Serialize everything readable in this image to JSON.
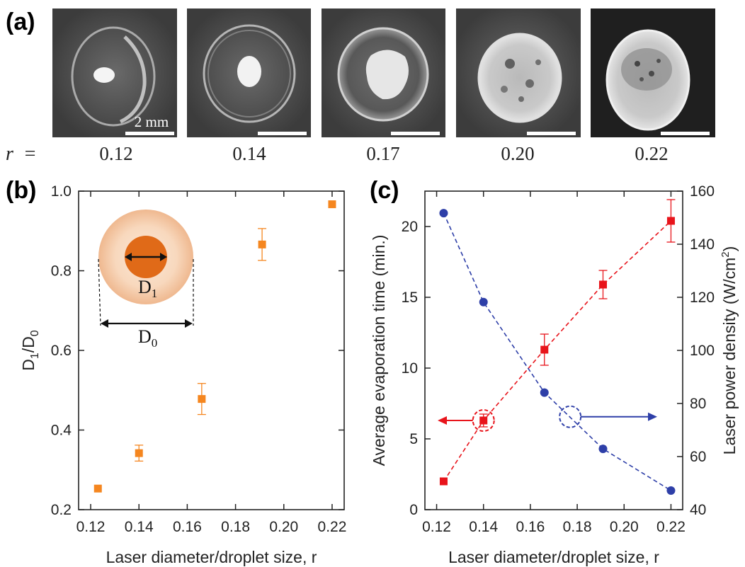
{
  "panels": {
    "a": {
      "label": "(a)"
    },
    "b": {
      "label": "(b)"
    },
    "c": {
      "label": "(c)"
    }
  },
  "photos": {
    "row_prefix": "r  =",
    "scale_bar_label": "2 mm",
    "items": [
      {
        "r_label": "0.12"
      },
      {
        "r_label": "0.14"
      },
      {
        "r_label": "0.17"
      },
      {
        "r_label": "0.20"
      },
      {
        "r_label": "0.22"
      }
    ]
  },
  "inset": {
    "d1_base": "D",
    "d1_sub": "1",
    "d0_base": "D",
    "d0_sub": "0",
    "colors": {
      "inner": "#e06a18",
      "outer_edge": "#f1c19d",
      "outer_center": "#fbe8d8"
    }
  },
  "chart_data": [
    {
      "id": "b",
      "type": "scatter",
      "title": "",
      "xlabel": "Laser diameter/droplet size, r",
      "ylabel": {
        "base": "D",
        "sub1": "1",
        "mid": "/D",
        "sub2": "0"
      },
      "xlim": [
        0.115,
        0.225
      ],
      "ylim": [
        0.2,
        1.0
      ],
      "xticks": [
        "0.12",
        "0.14",
        "0.16",
        "0.18",
        "0.20",
        "0.22"
      ],
      "yticks": [
        "0.2",
        "0.4",
        "0.6",
        "0.8",
        "1.0"
      ],
      "series": [
        {
          "color": "#f5861f",
          "marker": "square",
          "x": [
            0.123,
            0.14,
            0.166,
            0.191,
            0.22
          ],
          "y": [
            0.253,
            0.342,
            0.478,
            0.866,
            0.967
          ],
          "err": [
            0,
            0.02,
            0.039,
            0.04,
            0
          ]
        }
      ]
    },
    {
      "id": "c",
      "type": "line",
      "title": "",
      "xlabel": "Laser diameter/droplet size, r",
      "ylabel": "Average evaporation time (min.)",
      "y2label": {
        "base": "Laser power density (W/cm",
        "sup": "2",
        "end": ")"
      },
      "xlim": [
        0.115,
        0.225
      ],
      "ylim": [
        0,
        22.5
      ],
      "y2lim": [
        40,
        160
      ],
      "xticks": [
        "0.12",
        "0.14",
        "0.16",
        "0.18",
        "0.20",
        "0.22"
      ],
      "yticks": [
        "0",
        "5",
        "10",
        "15",
        "20"
      ],
      "y2ticks": [
        "40",
        "60",
        "80",
        "100",
        "120",
        "140",
        "160"
      ],
      "series": [
        {
          "axis": "left",
          "color": "#e8141b",
          "marker": "square",
          "line": "dashed",
          "x": [
            0.123,
            0.14,
            0.166,
            0.191,
            0.22
          ],
          "y": [
            2.0,
            6.3,
            11.3,
            15.9,
            20.4
          ],
          "err": [
            0,
            0.45,
            1.1,
            1.0,
            1.5
          ]
        },
        {
          "axis": "right",
          "color": "#2e3fa8",
          "marker": "circle",
          "line": "dashed",
          "x": [
            0.123,
            0.14,
            0.166,
            0.191,
            0.22
          ],
          "y": [
            151.7,
            118.2,
            84.1,
            62.9,
            47.2
          ],
          "err": [
            0,
            0,
            0,
            0,
            0
          ]
        }
      ],
      "annotations": [
        {
          "points_to": "left",
          "series_index": 0,
          "color": "#e8141b"
        },
        {
          "points_to": "right",
          "series_index": 1,
          "color": "#2e3fa8"
        }
      ]
    }
  ]
}
